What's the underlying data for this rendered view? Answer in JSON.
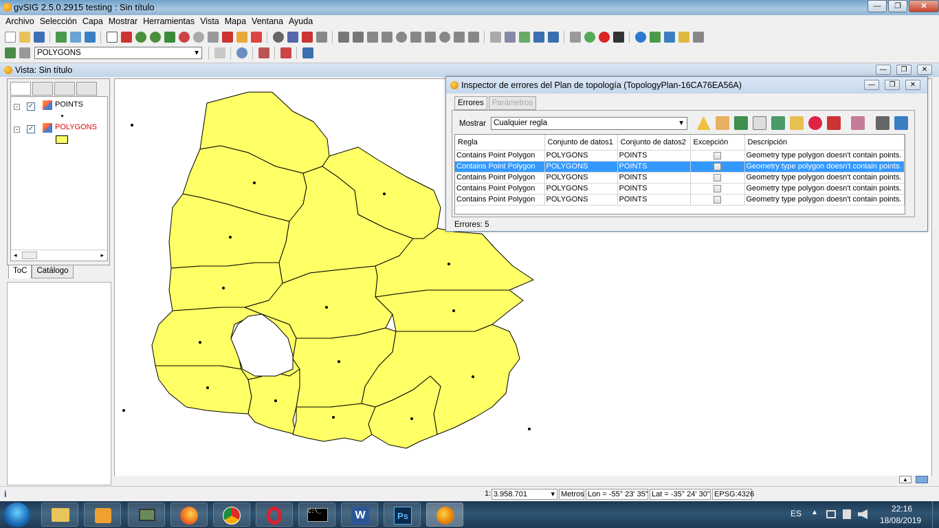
{
  "app": {
    "title": "gvSIG 2.5.0.2915 testing : Sin título"
  },
  "menu": [
    "Archivo",
    "Selección",
    "Capa",
    "Mostrar",
    "Herramientas",
    "Vista",
    "Mapa",
    "Ventana",
    "Ayuda"
  ],
  "toolbar": {
    "active_layer": "POLYGONS"
  },
  "view": {
    "title": "Vista: Sin título"
  },
  "toc": {
    "layers": [
      {
        "name": "POINTS",
        "color": "#000000"
      },
      {
        "name": "POLYGONS",
        "color": "#ff0000"
      }
    ],
    "tabs": [
      "ToC",
      "Catálogo"
    ]
  },
  "dialog": {
    "title": "Inspector de errores del Plan de topología (TopologyPlan-16CA76EA56A)",
    "tabs": [
      "Errores",
      "Parámetros"
    ],
    "show_label": "Mostrar",
    "show_value": "Cualquier regla",
    "columns": [
      "Regla",
      "Conjunto de datos1",
      "Conjunto de datos2",
      "Excepción",
      "Descripción"
    ],
    "rows": [
      {
        "rule": "Contains Point Polygon",
        "ds1": "POLYGONS",
        "ds2": "POINTS",
        "exception": false,
        "desc": "Geometry type polygon doesn't contain points."
      },
      {
        "rule": "Contains Point Polygon",
        "ds1": "POLYGONS",
        "ds2": "POINTS",
        "exception": false,
        "desc": "Geometry type polygon doesn't contain points.",
        "selected": true
      },
      {
        "rule": "Contains Point Polygon",
        "ds1": "POLYGONS",
        "ds2": "POINTS",
        "exception": false,
        "desc": "Geometry type polygon doesn't contain points."
      },
      {
        "rule": "Contains Point Polygon",
        "ds1": "POLYGONS",
        "ds2": "POINTS",
        "exception": false,
        "desc": "Geometry type polygon doesn't contain points."
      },
      {
        "rule": "Contains Point Polygon",
        "ds1": "POLYGONS",
        "ds2": "POINTS",
        "exception": false,
        "desc": "Geometry type polygon doesn't contain points."
      }
    ],
    "errors_count": "Errores: 5"
  },
  "status": {
    "scale_prefix": "1:",
    "scale": "3.958.701",
    "units": "Metros",
    "lon": "Lon = -55° 23' 35\"",
    "lat": "Lat = -35° 24' 30\"",
    "epsg": "EPSG:4326"
  },
  "taskbar": {
    "lang": "ES",
    "time": "22:16",
    "date": "18/08/2019"
  },
  "colors": {
    "polygon_fill": "#ffff66",
    "selection": "#3399ff"
  }
}
